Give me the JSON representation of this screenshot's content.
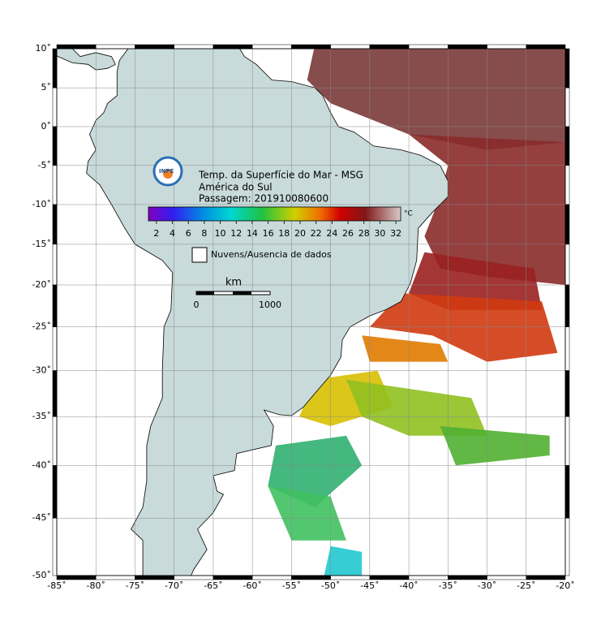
{
  "map": {
    "title_lines": [
      "Temp. da Superfície do Mar - MSG",
      "América do Sul",
      "Passagem: 201910080600"
    ],
    "logo": "INPE",
    "colorbar": {
      "lim": [
        1,
        32.6
      ],
      "ticks": [
        2,
        4,
        6,
        8,
        10,
        12,
        14,
        16,
        18,
        20,
        22,
        24,
        26,
        28,
        30,
        32
      ],
      "unit": "°C"
    },
    "legend": "Nuvens/Ausencia de dados",
    "scale": {
      "unit": "km",
      "start": "0",
      "end": "1000"
    },
    "lon": {
      "lim": [
        -85,
        -20
      ],
      "ticks": [
        {
          "value": -85,
          "label": "-85˚"
        },
        {
          "value": -80,
          "label": "-80˚"
        },
        {
          "value": -75,
          "label": "-75˚"
        },
        {
          "value": -70,
          "label": "-70˚"
        },
        {
          "value": -65,
          "label": "-65˚"
        },
        {
          "value": -60,
          "label": "-60˚"
        },
        {
          "value": -55,
          "label": "-55˚"
        },
        {
          "value": -50,
          "label": "-50˚"
        },
        {
          "value": -45,
          "label": "-45˚"
        },
        {
          "value": -40,
          "label": "-40˚"
        },
        {
          "value": -35,
          "label": "-35˚"
        },
        {
          "value": -30,
          "label": "-30˚"
        },
        {
          "value": -25,
          "label": "-25˚"
        },
        {
          "value": -20,
          "label": "-20˚"
        }
      ]
    },
    "lat": {
      "lim": [
        -50,
        10
      ],
      "ticks": [
        {
          "value": 10,
          "label": "10˚"
        },
        {
          "value": 5,
          "label": "5˚"
        },
        {
          "value": 0,
          "label": "0˚"
        },
        {
          "value": -5,
          "label": "-5˚"
        },
        {
          "value": -10,
          "label": "-10˚"
        },
        {
          "value": -15,
          "label": "-15˚"
        },
        {
          "value": -20,
          "label": "-20˚"
        },
        {
          "value": -25,
          "label": "-25˚"
        },
        {
          "value": -30,
          "label": "-30˚"
        },
        {
          "value": -35,
          "label": "-35˚"
        },
        {
          "value": -40,
          "label": "-40˚"
        },
        {
          "value": -45,
          "label": "-45˚"
        },
        {
          "value": -50,
          "label": "-50˚"
        }
      ]
    }
  }
}
